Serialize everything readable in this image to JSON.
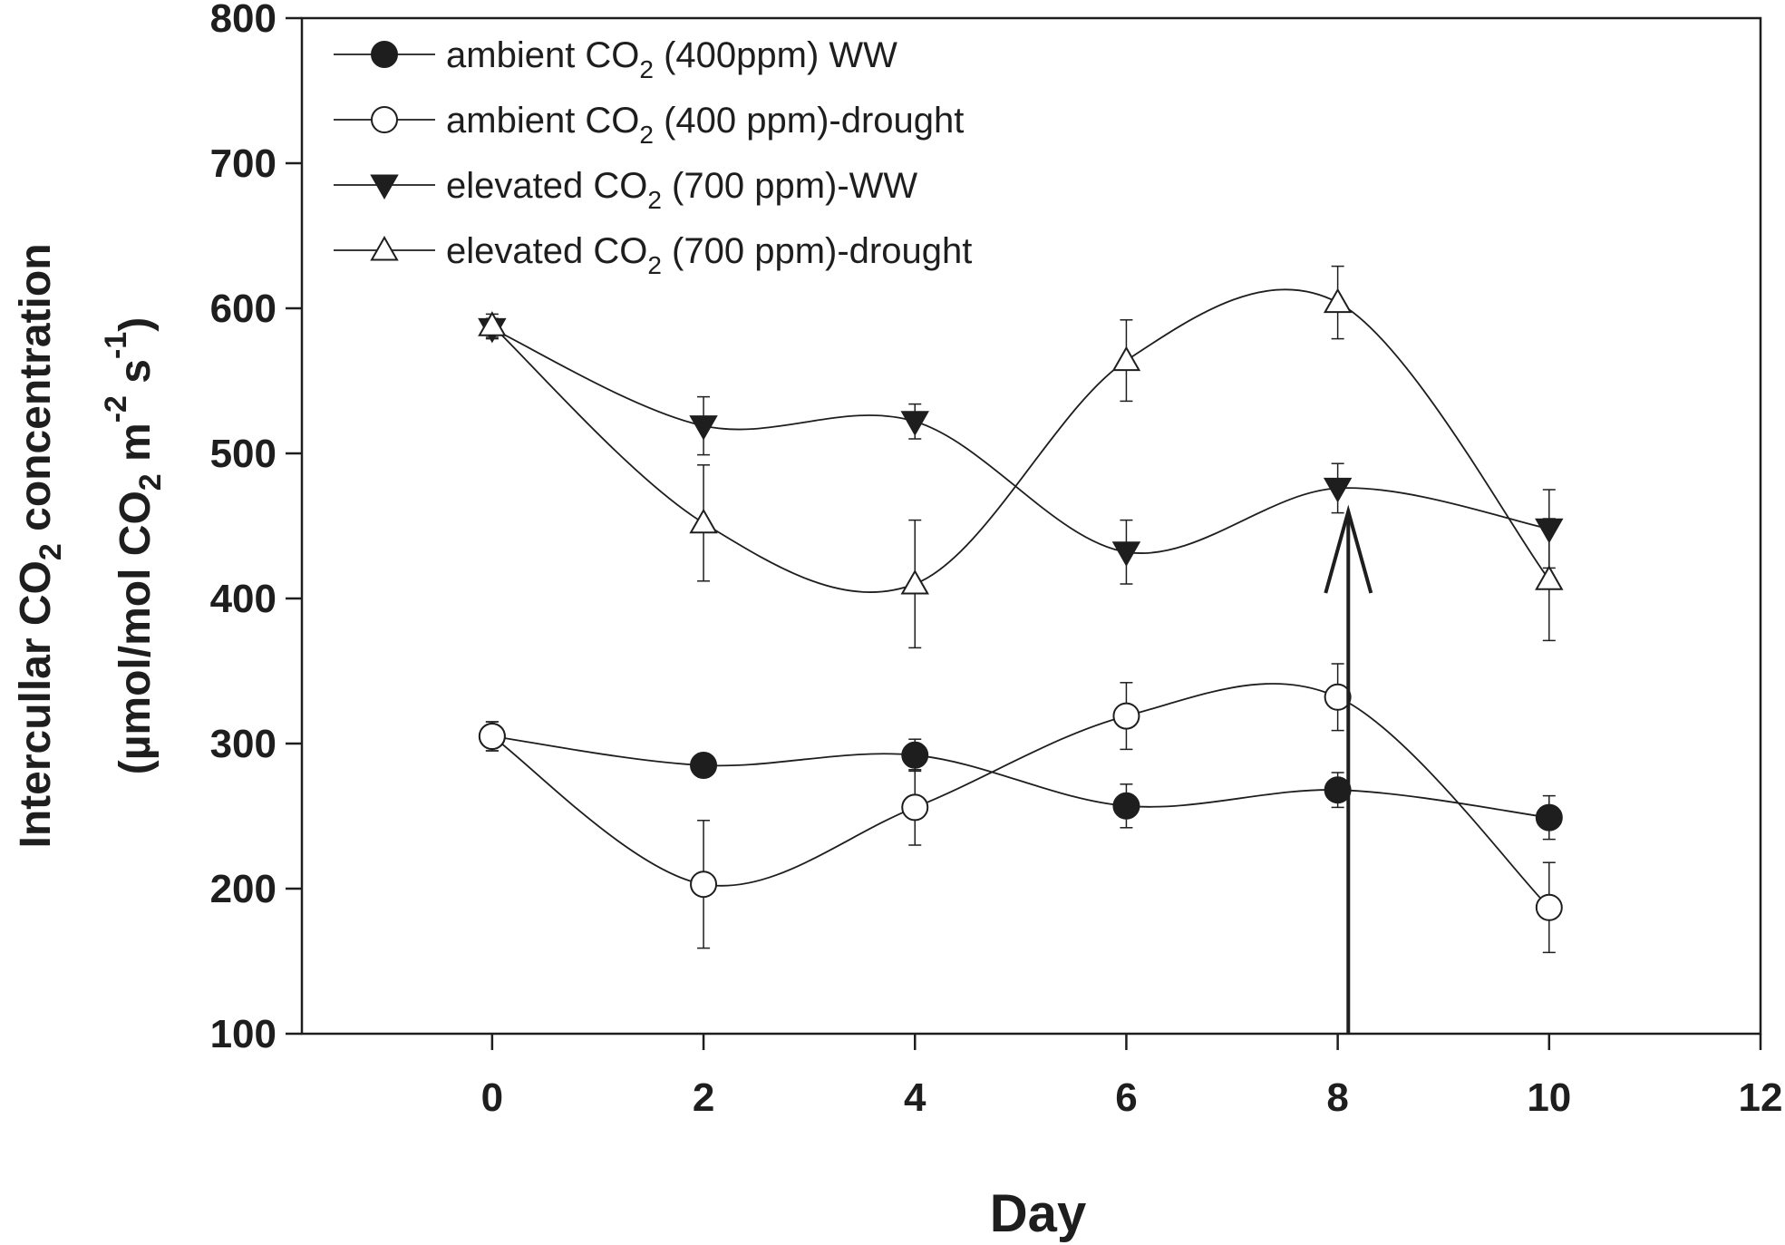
{
  "chart_data": {
    "type": "line",
    "title": "",
    "xlabel": "Day",
    "ylabel": {
      "line1_a": "Intercullar CO",
      "line1_sub": "2",
      "line1_b": " concentration",
      "line2_a": "(µmol/mol CO",
      "line2_sub": "2",
      "line2_b": " m",
      "line2_sup1": "-2",
      "line2_c": " s",
      "line2_sup2": "-1",
      "line2_d": ")"
    },
    "xlim": [
      -1.8,
      12
    ],
    "ylim": [
      100,
      800
    ],
    "x_ticks": [
      0,
      2,
      4,
      6,
      8,
      10,
      12
    ],
    "y_ticks": [
      100,
      200,
      300,
      400,
      500,
      600,
      700,
      800
    ],
    "grid": false,
    "legend_position": "top-left",
    "series": [
      {
        "name": "ambient CO2 (400ppm) WW",
        "legend_a": "ambient CO",
        "legend_sub": "2",
        "legend_b": " (400ppm) WW",
        "marker": "circle-filled",
        "x": [
          0,
          2,
          4,
          6,
          8,
          10
        ],
        "y": [
          305,
          285,
          292,
          257,
          268,
          249
        ],
        "err": [
          10,
          8,
          11,
          15,
          12,
          15
        ]
      },
      {
        "name": "ambient CO2 (400 ppm)-drought",
        "legend_a": "ambient CO",
        "legend_sub": "2",
        "legend_b": " (400 ppm)-drought",
        "marker": "circle-open",
        "x": [
          0,
          2,
          4,
          6,
          8,
          10
        ],
        "y": [
          305,
          203,
          256,
          319,
          332,
          187
        ],
        "err": [
          10,
          44,
          26,
          23,
          23,
          31
        ]
      },
      {
        "name": "elevated CO2 (700 ppm)-WW",
        "legend_a": "elevated CO",
        "legend_sub": "2",
        "legend_b": " (700 ppm)-WW",
        "marker": "triangle-down-filled",
        "x": [
          0,
          2,
          4,
          6,
          8,
          10
        ],
        "y": [
          586,
          519,
          522,
          432,
          476,
          448
        ],
        "err": [
          7,
          20,
          12,
          22,
          17,
          27
        ]
      },
      {
        "name": "elevated CO2 (700 ppm)-drought",
        "legend_a": "elevated CO",
        "legend_sub": "2",
        "legend_b": " (700 ppm)-drought",
        "marker": "triangle-up-open",
        "x": [
          0,
          2,
          4,
          6,
          8,
          10
        ],
        "y": [
          588,
          452,
          410,
          564,
          604,
          413
        ],
        "err": [
          8,
          40,
          44,
          28,
          25,
          42
        ]
      }
    ],
    "annotations": [
      {
        "type": "arrow",
        "x": 8.1,
        "y_from": 100,
        "y_to": 460,
        "text": ""
      }
    ]
  }
}
